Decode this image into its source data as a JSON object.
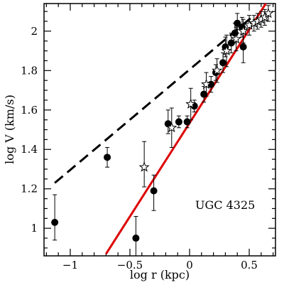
{
  "chart_data": {
    "type": "scatter",
    "title": "",
    "xlabel": "log r (kpc)",
    "ylabel": "log V (km/s)",
    "annotation": "UGC 4325",
    "xlim": [
      -1.22,
      0.72
    ],
    "ylim": [
      0.86,
      2.14
    ],
    "xticks": [
      {
        "value": -1,
        "label": "−1"
      },
      {
        "value": -0.5,
        "label": "−0.5"
      },
      {
        "value": 0,
        "label": "0"
      },
      {
        "value": 0.5,
        "label": "0.5"
      }
    ],
    "yticks": [
      {
        "value": 1,
        "label": "1"
      },
      {
        "value": 1.2,
        "label": "1.2"
      },
      {
        "value": 1.4,
        "label": "1.4"
      },
      {
        "value": 1.6,
        "label": "1.6"
      },
      {
        "value": 1.8,
        "label": "1.8"
      },
      {
        "value": 2,
        "label": "2"
      }
    ],
    "colors": {
      "fit_solid": "#dd0000",
      "fit_dashed": "#000000",
      "points": "#000000"
    },
    "series": [
      {
        "marker": "filled-circle",
        "points": [
          {
            "x": -1.13,
            "y": 1.03,
            "err_low": 0.09,
            "err_high": 0.14
          },
          {
            "x": -0.69,
            "y": 1.36,
            "err_low": 0.05,
            "err_high": 0.05
          },
          {
            "x": -0.45,
            "y": 0.95,
            "err_low": 0.12,
            "err_high": 0.11
          },
          {
            "x": -0.3,
            "y": 1.19,
            "err_low": 0.1,
            "err_high": 0.08
          },
          {
            "x": -0.18,
            "y": 1.53,
            "err_low": 0.05,
            "err_high": 0.07
          },
          {
            "x": -0.09,
            "y": 1.54,
            "err_low": 0.03,
            "err_high": 0.03
          },
          {
            "x": -0.02,
            "y": 1.54,
            "err_low": 0.03,
            "err_high": 0.03
          },
          {
            "x": 0.04,
            "y": 1.62,
            "err_low": 0.03,
            "err_high": 0.03
          },
          {
            "x": 0.12,
            "y": 1.68,
            "err_low": 0.04,
            "err_high": 0.04
          },
          {
            "x": 0.18,
            "y": 1.73,
            "err_low": 0.04,
            "err_high": 0.04
          },
          {
            "x": 0.22,
            "y": 1.79,
            "err_low": 0.04,
            "err_high": 0.04
          },
          {
            "x": 0.28,
            "y": 1.84,
            "err_low": 0.05,
            "err_high": 0.05
          },
          {
            "x": 0.3,
            "y": 1.92,
            "err_low": 0.05,
            "err_high": 0.05
          },
          {
            "x": 0.35,
            "y": 1.94,
            "err_low": 0.05,
            "err_high": 0.05
          },
          {
            "x": 0.38,
            "y": 1.99,
            "err_low": 0.05,
            "err_high": 0.05
          },
          {
            "x": 0.4,
            "y": 2.04,
            "err_low": 0.05,
            "err_high": 0.05
          },
          {
            "x": 0.44,
            "y": 2.02,
            "err_low": 0.05,
            "err_high": 0.05
          },
          {
            "x": 0.45,
            "y": 1.92,
            "err_low": 0.08,
            "err_high": 0.1
          }
        ]
      },
      {
        "marker": "open-star",
        "points": [
          {
            "x": -0.38,
            "y": 1.31,
            "err_low": 0.1,
            "err_high": 0.13
          },
          {
            "x": -0.15,
            "y": 1.51,
            "err_low": 0.1,
            "err_high": 0.1
          },
          {
            "x": 0.01,
            "y": 1.63,
            "err_low": 0.08,
            "err_high": 0.08
          },
          {
            "x": 0.14,
            "y": 1.73,
            "err_low": 0.06,
            "err_high": 0.06
          },
          {
            "x": 0.23,
            "y": 1.8,
            "err_low": 0.06,
            "err_high": 0.06
          },
          {
            "x": 0.31,
            "y": 1.9,
            "err_low": 0.08,
            "err_high": 0.08
          },
          {
            "x": 0.39,
            "y": 1.96,
            "err_low": 0.06,
            "err_high": 0.06
          },
          {
            "x": 0.45,
            "y": 2.0,
            "err_low": 0.06,
            "err_high": 0.06
          },
          {
            "x": 0.5,
            "y": 2.03,
            "err_low": 0.05,
            "err_high": 0.05
          },
          {
            "x": 0.54,
            "y": 2.04,
            "err_low": 0.04,
            "err_high": 0.04
          },
          {
            "x": 0.57,
            "y": 2.05,
            "err_low": 0.04,
            "err_high": 0.04
          },
          {
            "x": 0.6,
            "y": 2.06,
            "err_low": 0.04,
            "err_high": 0.04
          },
          {
            "x": 0.63,
            "y": 2.07,
            "err_low": 0.04,
            "err_high": 0.04
          },
          {
            "x": 0.66,
            "y": 2.09,
            "err_low": 0.04,
            "err_high": 0.04
          }
        ]
      }
    ],
    "lines": [
      {
        "style": "dashed",
        "color": "#000000",
        "x": [
          -1.13,
          0.52
        ],
        "y": [
          1.23,
          2.07
        ]
      },
      {
        "style": "solid",
        "color": "#dd0000",
        "x": [
          -0.7,
          0.66
        ],
        "y": [
          0.87,
          2.16
        ]
      }
    ]
  }
}
